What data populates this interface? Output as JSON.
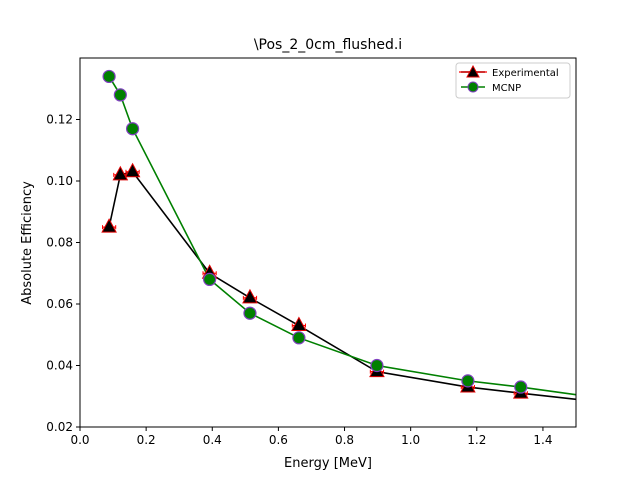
{
  "chart_data": {
    "type": "line",
    "title": "\\Pos_2_0cm_flushed.i",
    "xlabel": "Energy [MeV]",
    "ylabel": "Absolute Efficiency",
    "xlim": [
      0.0,
      1.5
    ],
    "ylim": [
      0.02,
      0.14
    ],
    "xticks": [
      0.0,
      0.2,
      0.4,
      0.6,
      0.8,
      1.0,
      1.2,
      1.4
    ],
    "xtick_labels": [
      "0.0",
      "0.2",
      "0.4",
      "0.6",
      "0.8",
      "1.0",
      "1.2",
      "1.4"
    ],
    "yticks": [
      0.02,
      0.04,
      0.06,
      0.08,
      0.1,
      0.12
    ],
    "ytick_labels": [
      "0.02",
      "0.04",
      "0.06",
      "0.08",
      "0.10",
      "0.12"
    ],
    "grid": false,
    "legend_position": "top-right",
    "colors": {
      "experimental_line": "#000000",
      "experimental_marker_edge": "#e00000",
      "experimental_errorbar": "#ff0000",
      "mcnp_line": "#008000",
      "mcnp_marker_fill": "#008000",
      "mcnp_marker_edge": "#8040c0"
    },
    "series": [
      {
        "name": "Experimental",
        "marker": "triangle",
        "x": [
          0.088,
          0.122,
          0.159,
          0.392,
          0.514,
          0.662,
          0.898,
          1.173,
          1.333,
          1.5
        ],
        "y": [
          0.085,
          0.102,
          0.103,
          0.07,
          0.062,
          0.053,
          0.038,
          0.033,
          0.031,
          0.029
        ],
        "xerr": 0.04,
        "line_only_last": true
      },
      {
        "name": "MCNP",
        "marker": "circle",
        "x": [
          0.088,
          0.122,
          0.159,
          0.392,
          0.514,
          0.662,
          0.898,
          1.173,
          1.333,
          1.5
        ],
        "y": [
          0.134,
          0.128,
          0.117,
          0.068,
          0.057,
          0.049,
          0.04,
          0.035,
          0.033,
          0.0305
        ],
        "line_only_last": true
      }
    ]
  }
}
